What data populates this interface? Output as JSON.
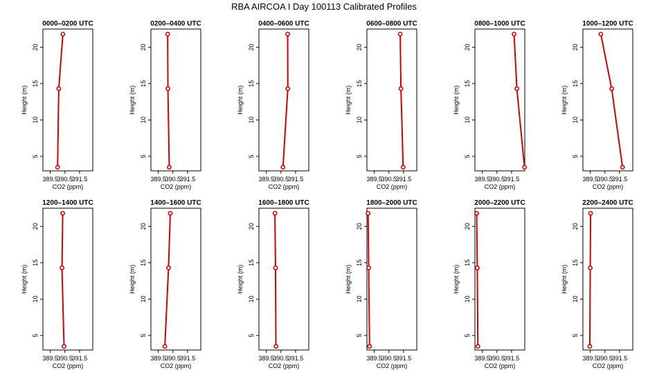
{
  "figure_title": "RBA AIRCOA I  Day 100113  Calibrated Profiles",
  "colors": {
    "line": "#d40000",
    "axis": "#000000"
  },
  "chart_data": [
    {
      "type": "line",
      "title": "0000–0200 UTC",
      "xlabel": "CO2 (ppm)",
      "ylabel": "Height (m)",
      "xlim": [
        389.0,
        392.4
      ],
      "ylim": [
        3,
        22.5
      ],
      "xticks": [
        "389.5",
        "390.5",
        "391.5"
      ],
      "xtick_values": [
        389.5,
        390.5,
        391.5
      ],
      "yticks": [
        "5",
        "10",
        "15",
        "20"
      ],
      "ytick_values": [
        5,
        10,
        15,
        20
      ],
      "x": [
        390.0,
        390.08,
        390.36
      ],
      "y": [
        3.5,
        14.3,
        21.8
      ]
    },
    {
      "type": "line",
      "title": "0200–0400 UTC",
      "xlabel": "CO2 (ppm)",
      "ylabel": "Height (m)",
      "xlim": [
        389.0,
        392.4
      ],
      "ylim": [
        3,
        22.5
      ],
      "xticks": [
        "389.5",
        "390.5",
        "391.5"
      ],
      "xtick_values": [
        389.5,
        390.5,
        391.5
      ],
      "yticks": [
        "5",
        "10",
        "15",
        "20"
      ],
      "ytick_values": [
        5,
        10,
        15,
        20
      ],
      "x": [
        390.25,
        390.16,
        390.14
      ],
      "y": [
        3.5,
        14.3,
        21.8
      ]
    },
    {
      "type": "line",
      "title": "0400–0600 UTC",
      "xlabel": "CO2 (ppm)",
      "ylabel": "Height (m)",
      "xlim": [
        389.0,
        392.4
      ],
      "ylim": [
        3,
        22.5
      ],
      "xticks": [
        "389.5",
        "390.5",
        "391.5"
      ],
      "xtick_values": [
        389.5,
        390.5,
        391.5
      ],
      "yticks": [
        "5",
        "10",
        "15",
        "20"
      ],
      "ytick_values": [
        5,
        10,
        15,
        20
      ],
      "x": [
        390.64,
        390.97,
        390.96
      ],
      "y": [
        3.5,
        14.3,
        21.8
      ]
    },
    {
      "type": "line",
      "title": "0600–0800 UTC",
      "xlabel": "CO2 (ppm)",
      "ylabel": "Height (m)",
      "xlim": [
        389.0,
        392.4
      ],
      "ylim": [
        3,
        22.5
      ],
      "xticks": [
        "389.5",
        "390.5",
        "391.5"
      ],
      "xtick_values": [
        389.5,
        390.5,
        391.5
      ],
      "yticks": [
        "5",
        "10",
        "15",
        "20"
      ],
      "ytick_values": [
        5,
        10,
        15,
        20
      ],
      "x": [
        391.47,
        391.32,
        391.27
      ],
      "y": [
        3.5,
        14.3,
        21.8
      ]
    },
    {
      "type": "line",
      "title": "0800–1000 UTC",
      "xlabel": "CO2 (ppm)",
      "ylabel": "Height (m)",
      "xlim": [
        389.0,
        392.4
      ],
      "ylim": [
        3,
        22.5
      ],
      "xticks": [
        "389.5",
        "390.5",
        "391.5"
      ],
      "xtick_values": [
        389.5,
        390.5,
        391.5
      ],
      "yticks": [
        "5",
        "10",
        "15",
        "20"
      ],
      "ytick_values": [
        5,
        10,
        15,
        20
      ],
      "x": [
        392.38,
        391.86,
        391.67
      ],
      "y": [
        3.5,
        14.3,
        21.8
      ]
    },
    {
      "type": "line",
      "title": "1000–1200 UTC",
      "xlabel": "CO2 (ppm)",
      "ylabel": "Height (m)",
      "xlim": [
        389.0,
        392.4
      ],
      "ylim": [
        3,
        22.5
      ],
      "xticks": [
        "389.5",
        "390.5",
        "391.5"
      ],
      "xtick_values": [
        389.5,
        390.5,
        391.5
      ],
      "yticks": [
        "5",
        "10",
        "15",
        "20"
      ],
      "ytick_values": [
        5,
        10,
        15,
        20
      ],
      "x": [
        391.7,
        390.96,
        390.22
      ],
      "y": [
        3.5,
        14.3,
        21.8
      ]
    },
    {
      "type": "line",
      "title": "1200–1400 UTC",
      "xlabel": "CO2 (ppm)",
      "ylabel": "Height (m)",
      "xlim": [
        389.0,
        392.4
      ],
      "ylim": [
        3,
        22.5
      ],
      "xticks": [
        "389.5",
        "390.5",
        "391.5"
      ],
      "xtick_values": [
        389.5,
        390.5,
        391.5
      ],
      "yticks": [
        "5",
        "10",
        "15",
        "20"
      ],
      "ytick_values": [
        5,
        10,
        15,
        20
      ],
      "x": [
        390.44,
        390.3,
        390.35
      ],
      "y": [
        3.5,
        14.3,
        21.8
      ]
    },
    {
      "type": "line",
      "title": "1400–1600 UTC",
      "xlabel": "CO2 (ppm)",
      "ylabel": "Height (m)",
      "xlim": [
        389.0,
        392.4
      ],
      "ylim": [
        3,
        22.5
      ],
      "xticks": [
        "389.5",
        "390.5",
        "391.5"
      ],
      "xtick_values": [
        389.5,
        390.5,
        391.5
      ],
      "yticks": [
        "5",
        "10",
        "15",
        "20"
      ],
      "ytick_values": [
        5,
        10,
        15,
        20
      ],
      "x": [
        389.95,
        390.2,
        390.32
      ],
      "y": [
        3.5,
        14.3,
        21.8
      ]
    },
    {
      "type": "line",
      "title": "1600–1800 UTC",
      "xlabel": "CO2 (ppm)",
      "ylabel": "Height (m)",
      "xlim": [
        389.0,
        392.4
      ],
      "ylim": [
        3,
        22.5
      ],
      "xticks": [
        "389.5",
        "390.5",
        "391.5"
      ],
      "xtick_values": [
        389.5,
        390.5,
        391.5
      ],
      "yticks": [
        "5",
        "10",
        "15",
        "20"
      ],
      "ytick_values": [
        5,
        10,
        15,
        20
      ],
      "x": [
        390.16,
        390.13,
        390.09
      ],
      "y": [
        3.5,
        14.3,
        21.8
      ]
    },
    {
      "type": "line",
      "title": "1800–2000 UTC",
      "xlabel": "CO2 (ppm)",
      "ylabel": "Height (m)",
      "xlim": [
        389.0,
        392.4
      ],
      "ylim": [
        3,
        22.5
      ],
      "xticks": [
        "389.5",
        "390.5",
        "391.5"
      ],
      "xtick_values": [
        389.5,
        390.5,
        391.5
      ],
      "yticks": [
        "5",
        "10",
        "15",
        "20"
      ],
      "ytick_values": [
        5,
        10,
        15,
        20
      ],
      "x": [
        389.18,
        389.12,
        389.08
      ],
      "y": [
        3.5,
        14.3,
        21.8
      ]
    },
    {
      "type": "line",
      "title": "2000–2200 UTC",
      "xlabel": "CO2 (ppm)",
      "ylabel": "Height (m)",
      "xlim": [
        389.0,
        392.4
      ],
      "ylim": [
        3,
        22.5
      ],
      "xticks": [
        "389.5",
        "390.5",
        "391.5"
      ],
      "xtick_values": [
        389.5,
        390.5,
        391.5
      ],
      "yticks": [
        "5",
        "10",
        "15",
        "20"
      ],
      "ytick_values": [
        5,
        10,
        15,
        20
      ],
      "x": [
        389.2,
        389.16,
        389.12
      ],
      "y": [
        3.5,
        14.3,
        21.8
      ]
    },
    {
      "type": "line",
      "title": "2200–2400 UTC",
      "xlabel": "CO2 (ppm)",
      "ylabel": "Height (m)",
      "xlim": [
        389.0,
        392.4
      ],
      "ylim": [
        3,
        22.5
      ],
      "xticks": [
        "389.5",
        "390.5",
        "391.5"
      ],
      "xtick_values": [
        389.5,
        390.5,
        391.5
      ],
      "yticks": [
        "5",
        "10",
        "15",
        "20"
      ],
      "ytick_values": [
        5,
        10,
        15,
        20
      ],
      "x": [
        389.47,
        389.5,
        389.52
      ],
      "y": [
        3.5,
        14.3,
        21.8
      ]
    }
  ]
}
